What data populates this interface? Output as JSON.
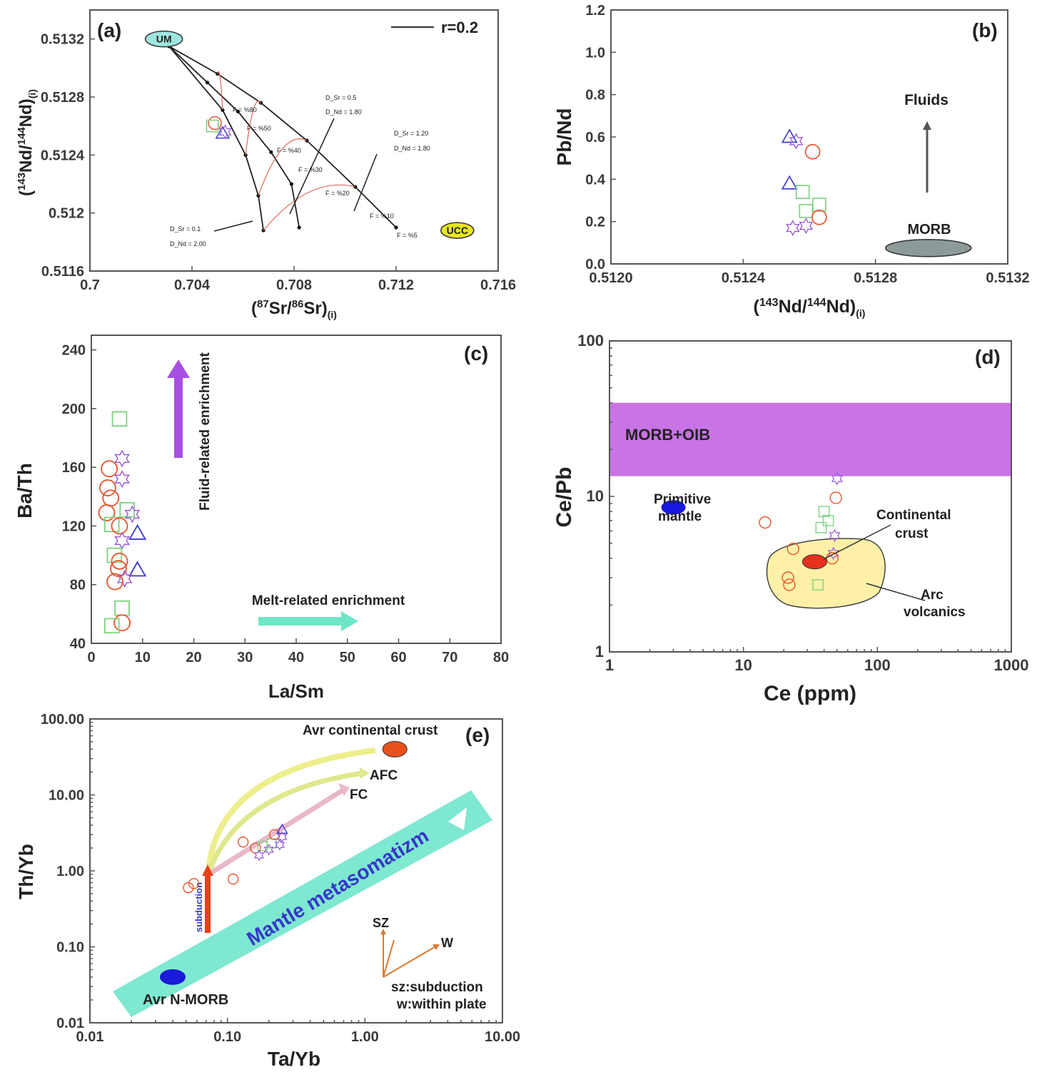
{
  "colors": {
    "circle": "#e8542c",
    "square": "#7ed37e",
    "triangle": "#3b3bd0",
    "star": "#9a5ad8",
    "morb_oib_band": "#c873e6",
    "arc_field": "#fff0a8",
    "arrow_fluid": "#a64fe0",
    "arrow_melt": "#6ee6c6",
    "mantle_band": "#7fe8d0"
  },
  "chart_data": [
    {
      "id": "a",
      "type": "scatter",
      "panel_label": "(a)",
      "xlabel_pre": "(",
      "xlabel_sup1": "87",
      "xlabel_mid": "Sr/",
      "xlabel_sup2": "86",
      "xlabel_post": "Sr)",
      "xlabel_sub": "(i)",
      "ylabel_pre": "(",
      "ylabel_sup1": "143",
      "ylabel_mid": "Nd/",
      "ylabel_sup2": "144",
      "ylabel_post": "Nd)",
      "ylabel_sub": "(i)",
      "xlim": [
        0.7,
        0.716
      ],
      "ylim": [
        0.5116,
        0.5134
      ],
      "xticks": [
        0.7,
        0.704,
        0.708,
        0.712,
        0.716
      ],
      "xtick_labels": [
        "0.7",
        "0.704",
        "0.708",
        "0.712",
        "0.716"
      ],
      "yticks": [
        0.5116,
        0.512,
        0.5124,
        0.5128,
        0.5132
      ],
      "ytick_labels": [
        "0.5116",
        "0.512",
        "0.5124",
        "0.5128",
        "0.5132"
      ],
      "legend": "r=0.2",
      "end_members": [
        {
          "label": "UM",
          "x": 0.7029,
          "y": 0.5132
        },
        {
          "label": "UCC",
          "x": 0.7144,
          "y": 0.51188
        }
      ],
      "mixing_curves": [
        {
          "label": "D_Sr = 0.1 / D_Nd = 2.00",
          "points": [
            [
              0.7031,
              0.51315
            ],
            [
              0.7052,
              0.51271
            ],
            [
              0.7061,
              0.5124
            ],
            [
              0.7066,
              0.51212
            ],
            [
              0.7068,
              0.51188
            ]
          ]
        },
        {
          "label": "D_Sr = 0.5 / D_Nd = 1.80",
          "points": [
            [
              0.7031,
              0.51315
            ],
            [
              0.7046,
              0.5129
            ],
            [
              0.7058,
              0.5127
            ],
            [
              0.7071,
              0.51242
            ],
            [
              0.7079,
              0.5122
            ],
            [
              0.7082,
              0.5119
            ]
          ]
        },
        {
          "label": "D_Sr = 1.20 / D_Nd = 1.80",
          "points": [
            [
              0.7031,
              0.51315
            ],
            [
              0.705,
              0.51296
            ],
            [
              0.7067,
              0.51276
            ],
            [
              0.7085,
              0.5125
            ],
            [
              0.7104,
              0.51218
            ],
            [
              0.712,
              0.5119
            ]
          ]
        }
      ],
      "f_labels": [
        "F = %80",
        "F = %50",
        "F = %40",
        "F = %30",
        "F = %20",
        "F = %10",
        "F = %5"
      ],
      "d_labels": [
        {
          "l1": "D_Sr = 0.5",
          "l2": "D_Nd = 1.80"
        },
        {
          "l1": "D_Sr = 1.20",
          "l2": "D_Nd = 1.80"
        },
        {
          "l1": "D_Sr = 0.1",
          "l2": "D_Nd = 2.00"
        }
      ],
      "samples": [
        {
          "marker": "circle",
          "x": 0.7049,
          "y": 0.51262
        },
        {
          "marker": "square",
          "x": 0.7048,
          "y": 0.5126
        },
        {
          "marker": "triangle",
          "x": 0.7052,
          "y": 0.51255
        },
        {
          "marker": "star",
          "x": 0.7053,
          "y": 0.51256
        }
      ]
    },
    {
      "id": "b",
      "type": "scatter",
      "panel_label": "(b)",
      "xlabel_pre": "(",
      "xlabel_sup1": "143",
      "xlabel_mid": "Nd/",
      "xlabel_sup2": "144",
      "xlabel_post": "Nd)",
      "xlabel_sub": "(i)",
      "ylabel": "Pb/Nd",
      "xlim": [
        0.512,
        0.5132
      ],
      "ylim": [
        0.0,
        1.2
      ],
      "xticks": [
        0.512,
        0.5124,
        0.5128,
        0.5132
      ],
      "xtick_labels": [
        "0.5120",
        "0.5124",
        "0.5128",
        "0.5132"
      ],
      "yticks": [
        0.0,
        0.2,
        0.4,
        0.6,
        0.8,
        1.0,
        1.2
      ],
      "ytick_labels": [
        "0.0",
        "0.2",
        "0.4",
        "0.6",
        "0.8",
        "1.0",
        "1.2"
      ],
      "annotations": {
        "fluids": "Fluids",
        "morb": "MORB"
      },
      "morb_field": {
        "x": 0.51296,
        "y": 0.075
      },
      "samples": [
        {
          "marker": "triangle",
          "x": 0.51254,
          "y": 0.6
        },
        {
          "marker": "star",
          "x": 0.51256,
          "y": 0.58
        },
        {
          "marker": "circle",
          "x": 0.51261,
          "y": 0.53
        },
        {
          "marker": "triangle",
          "x": 0.51254,
          "y": 0.38
        },
        {
          "marker": "square",
          "x": 0.51258,
          "y": 0.34
        },
        {
          "marker": "square",
          "x": 0.51263,
          "y": 0.28
        },
        {
          "marker": "square",
          "x": 0.51259,
          "y": 0.25
        },
        {
          "marker": "circle",
          "x": 0.51263,
          "y": 0.22
        },
        {
          "marker": "star",
          "x": 0.51255,
          "y": 0.17
        },
        {
          "marker": "star",
          "x": 0.51259,
          "y": 0.18
        }
      ]
    },
    {
      "id": "c",
      "type": "scatter",
      "panel_label": "(c)",
      "xlabel": "La/Sm",
      "ylabel": "Ba/Th",
      "xlim": [
        0,
        80
      ],
      "ylim": [
        40,
        250
      ],
      "xticks": [
        0,
        10,
        20,
        30,
        40,
        50,
        60,
        70,
        80
      ],
      "xtick_labels": [
        "0",
        "10",
        "20",
        "30",
        "40",
        "50",
        "60",
        "70",
        "80"
      ],
      "yticks": [
        40,
        80,
        120,
        160,
        200,
        240
      ],
      "ytick_labels": [
        "40",
        "80",
        "120",
        "160",
        "200",
        "240"
      ],
      "annotations": {
        "fluid": "Fluid-related enrichment",
        "melt": "Melt-related enrichment"
      },
      "samples": [
        {
          "marker": "square",
          "x": 5.5,
          "y": 193
        },
        {
          "marker": "star",
          "x": 6,
          "y": 166
        },
        {
          "marker": "circle",
          "x": 3.5,
          "y": 159
        },
        {
          "marker": "star",
          "x": 6,
          "y": 152
        },
        {
          "marker": "circle",
          "x": 3.2,
          "y": 146
        },
        {
          "marker": "circle",
          "x": 3.8,
          "y": 139
        },
        {
          "marker": "square",
          "x": 7,
          "y": 131
        },
        {
          "marker": "circle",
          "x": 3,
          "y": 129
        },
        {
          "marker": "star",
          "x": 8,
          "y": 128
        },
        {
          "marker": "square",
          "x": 4,
          "y": 121
        },
        {
          "marker": "circle",
          "x": 5.5,
          "y": 120
        },
        {
          "marker": "triangle",
          "x": 9,
          "y": 115
        },
        {
          "marker": "star",
          "x": 6,
          "y": 110
        },
        {
          "marker": "square",
          "x": 4.5,
          "y": 100
        },
        {
          "marker": "circle",
          "x": 5.5,
          "y": 96
        },
        {
          "marker": "circle",
          "x": 5.3,
          "y": 91
        },
        {
          "marker": "triangle",
          "x": 9,
          "y": 90
        },
        {
          "marker": "star",
          "x": 6.5,
          "y": 84
        },
        {
          "marker": "circle",
          "x": 4.6,
          "y": 82
        },
        {
          "marker": "square",
          "x": 6,
          "y": 64
        },
        {
          "marker": "circle",
          "x": 6,
          "y": 54
        },
        {
          "marker": "square",
          "x": 4,
          "y": 52
        }
      ]
    },
    {
      "id": "d",
      "type": "scatter",
      "panel_label": "(d)",
      "xlabel": "Ce (ppm)",
      "ylabel": "Ce/Pb",
      "xscale": "log",
      "yscale": "log",
      "xlim": [
        1,
        1000
      ],
      "ylim": [
        1,
        100
      ],
      "xticks": [
        1,
        10,
        100,
        1000
      ],
      "xtick_labels": [
        "1",
        "10",
        "100",
        "1000"
      ],
      "yticks": [
        1,
        10,
        100
      ],
      "ytick_labels": [
        "1",
        "10",
        "100"
      ],
      "morb_oib_band": {
        "ymin": 13.5,
        "ymax": 40,
        "label": "MORB+OIB"
      },
      "annotations": {
        "pm1": "Primitive",
        "pm2": "mantle",
        "cc1": "Continental",
        "cc2": "crust",
        "arc1": "Arc",
        "arc2": "volcanics"
      },
      "primitive_mantle": {
        "x": 3,
        "y": 8.5
      },
      "continental_crust": {
        "x": 34,
        "y": 3.8
      },
      "samples": [
        {
          "marker": "circle",
          "x": 14.5,
          "y": 6.8
        },
        {
          "marker": "circle",
          "x": 23.5,
          "y": 4.6
        },
        {
          "marker": "circle",
          "x": 21.5,
          "y": 3.0
        },
        {
          "marker": "circle",
          "x": 22,
          "y": 2.7
        },
        {
          "marker": "star",
          "x": 50,
          "y": 13
        },
        {
          "marker": "circle",
          "x": 49,
          "y": 9.8
        },
        {
          "marker": "square",
          "x": 40,
          "y": 8.0
        },
        {
          "marker": "square",
          "x": 43,
          "y": 7.0
        },
        {
          "marker": "square",
          "x": 38,
          "y": 6.3
        },
        {
          "marker": "star",
          "x": 48,
          "y": 5.6
        },
        {
          "marker": "star",
          "x": 47,
          "y": 4.3
        },
        {
          "marker": "circle",
          "x": 46,
          "y": 4.0
        },
        {
          "marker": "square",
          "x": 36,
          "y": 2.7
        }
      ]
    },
    {
      "id": "e",
      "type": "scatter",
      "panel_label": "(e)",
      "xlabel": "Ta/Yb",
      "ylabel": "Th/Yb",
      "xscale": "log",
      "yscale": "log",
      "xlim": [
        0.01,
        10
      ],
      "ylim": [
        0.01,
        100
      ],
      "xticks": [
        0.01,
        0.1,
        1,
        10
      ],
      "xtick_labels": [
        "0.01",
        "0.10",
        "1.00",
        "10.00"
      ],
      "yticks": [
        0.01,
        0.1,
        1,
        10,
        100
      ],
      "ytick_labels": [
        "0.01",
        "0.10",
        "1.00",
        "10.00",
        "100.00"
      ],
      "annotations": {
        "cc": "Avr continental crust",
        "afc": "AFC",
        "fc": "FC",
        "subduction": "subduction",
        "mantle": "Mantle metasomatizm",
        "sz": "SZ",
        "w": "W",
        "key1": "sz:subduction",
        "key2": "w:within plate",
        "nmorb": "Avr N-MORB"
      },
      "avr_nmorb": {
        "x": 0.04,
        "y": 0.04
      },
      "avr_cc": {
        "x": 1.65,
        "y": 40
      },
      "samples": [
        {
          "marker": "circle",
          "x": 0.052,
          "y": 0.6
        },
        {
          "marker": "circle",
          "x": 0.057,
          "y": 0.68
        },
        {
          "marker": "circle",
          "x": 0.11,
          "y": 0.78
        },
        {
          "marker": "circle",
          "x": 0.13,
          "y": 2.4
        },
        {
          "marker": "circle",
          "x": 0.16,
          "y": 2.0
        },
        {
          "marker": "square",
          "x": 0.18,
          "y": 2.1
        },
        {
          "marker": "square",
          "x": 0.21,
          "y": 2.3
        },
        {
          "marker": "star",
          "x": 0.17,
          "y": 1.6
        },
        {
          "marker": "star",
          "x": 0.2,
          "y": 1.9
        },
        {
          "marker": "star",
          "x": 0.24,
          "y": 2.2
        },
        {
          "marker": "circle",
          "x": 0.22,
          "y": 3.0
        },
        {
          "marker": "triangle",
          "x": 0.25,
          "y": 3.5
        },
        {
          "marker": "star",
          "x": 0.25,
          "y": 2.8
        }
      ]
    }
  ]
}
